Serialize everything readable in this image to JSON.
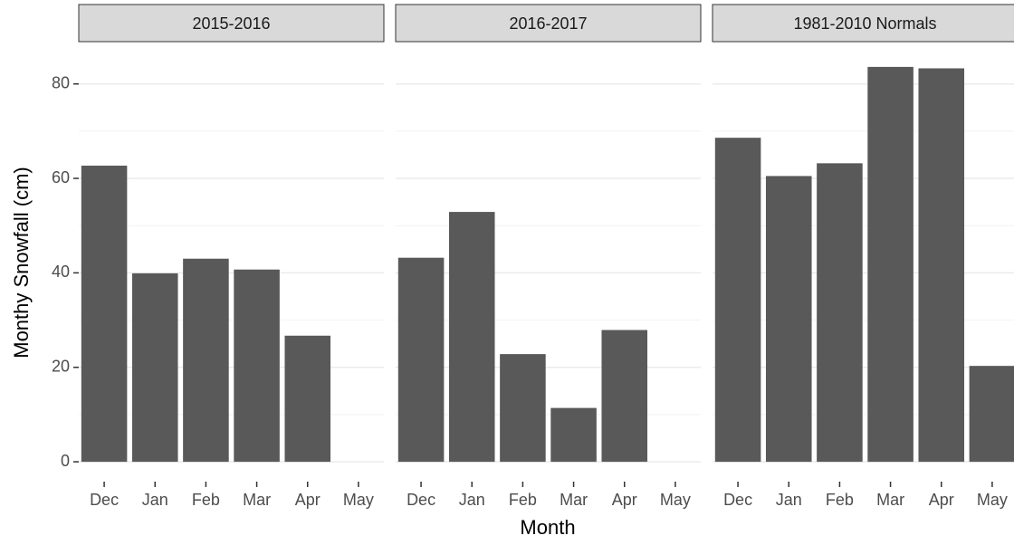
{
  "chart_data": [
    {
      "type": "bar",
      "title": "2015-2016",
      "y_label": "Monthy Snowfall (cm)",
      "categories": [
        "Dec",
        "Jan",
        "Feb",
        "Mar",
        "Apr",
        "May"
      ],
      "values": [
        62.7,
        39.9,
        43.0,
        40.7,
        26.7,
        0
      ],
      "color": "#595959",
      "ylim": [
        -4.2,
        87.8
      ],
      "yticks": [
        0,
        20,
        40,
        60,
        80
      ],
      "grid": true
    },
    {
      "type": "bar",
      "title": "2016-2017",
      "x_label": "Month",
      "categories": [
        "Dec",
        "Jan",
        "Feb",
        "Mar",
        "Apr",
        "May"
      ],
      "values": [
        43.2,
        52.9,
        22.8,
        11.4,
        27.9,
        0
      ],
      "color": "#595959",
      "ylim": [
        -4.2,
        87.8
      ],
      "grid": true
    },
    {
      "type": "bar",
      "title": "1981-2010 Normals",
      "categories": [
        "Dec",
        "Jan",
        "Feb",
        "Mar",
        "Apr",
        "May"
      ],
      "values": [
        68.6,
        60.5,
        63.2,
        83.6,
        83.3,
        20.3
      ],
      "color": "#595959",
      "ylim": [
        -4.2,
        87.8
      ],
      "grid": true
    }
  ]
}
